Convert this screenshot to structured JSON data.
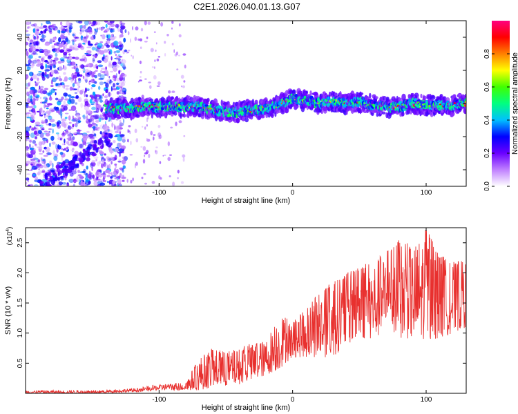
{
  "title": "C2E1.2026.040.01.13.G07",
  "chart_data": [
    {
      "type": "heatmap",
      "xlabel": "Height of straight line (km)",
      "ylabel": "Frequency (Hz)",
      "xlim": [
        -200,
        130
      ],
      "ylim": [
        -50,
        50
      ],
      "xticks": [
        -100,
        0,
        100
      ],
      "xtick_labels": [
        "-100",
        "0",
        "100"
      ],
      "yticks": [
        -40,
        -20,
        0,
        20,
        40
      ],
      "ytick_labels": [
        "-40",
        "-20",
        "0",
        "20",
        "40"
      ],
      "colorbar": {
        "label": "Normalized spectral amplitude",
        "range": [
          0,
          1
        ],
        "ticks": [
          0,
          0.2,
          0.4,
          0.6,
          0.8
        ],
        "tick_labels": [
          "0.0",
          "0.2",
          "0.4",
          "0.6",
          "0.8"
        ],
        "colormap": [
          "#ffffff",
          "#c080ff",
          "#6a00ff",
          "#0000ff",
          "#00c0ff",
          "#00ff80",
          "#40ff00",
          "#ffff00",
          "#ff8000",
          "#ff0000",
          "#ff0080"
        ]
      },
      "band_center": {
        "x": [
          -140,
          -130,
          -120,
          -110,
          -100,
          -90,
          -80,
          -70,
          -60,
          -50,
          -40,
          -30,
          -20,
          -10,
          -5,
          0,
          5,
          10,
          20,
          30,
          40,
          50,
          60,
          70,
          80,
          90,
          100,
          110,
          120,
          130
        ],
        "y": [
          -3,
          -3,
          -3,
          -2,
          -2,
          -2,
          -2,
          -2,
          -4,
          -5,
          -5,
          -4,
          -3,
          -1,
          1,
          3,
          2,
          2,
          0,
          1,
          0,
          1,
          -1,
          -2,
          -2,
          0,
          -1,
          -1,
          -1,
          0
        ]
      }
    },
    {
      "type": "line",
      "xlabel": "Height of straight line (km)",
      "ylabel": "SNR (10 * v/v)",
      "scale_label": "(x10",
      "scale_exp": "4",
      "xlim": [
        -200,
        130
      ],
      "ylim": [
        0,
        2.75
      ],
      "xticks": [
        -100,
        0,
        100
      ],
      "xtick_labels": [
        "-100",
        "0",
        "100"
      ],
      "yticks": [
        0.5,
        1.0,
        1.5,
        2.0,
        2.5
      ],
      "ytick_labels": [
        "0.5",
        "1.0",
        "1.5",
        "2.0",
        "2.5"
      ],
      "line_color": "#e8302e",
      "envelope": {
        "x": [
          -200,
          -150,
          -120,
          -100,
          -80,
          -70,
          -60,
          -50,
          -40,
          -30,
          -20,
          -10,
          0,
          10,
          20,
          30,
          40,
          50,
          60,
          70,
          80,
          90,
          100,
          110,
          120,
          130
        ],
        "lower": [
          0.0,
          0.0,
          0.02,
          0.05,
          0.05,
          0.05,
          0.1,
          0.12,
          0.15,
          0.2,
          0.3,
          0.4,
          0.6,
          0.6,
          0.6,
          0.6,
          0.8,
          0.9,
          0.9,
          1.0,
          0.9,
          0.9,
          0.9,
          0.9,
          1.0,
          1.1
        ],
        "upper": [
          0.05,
          0.05,
          0.08,
          0.15,
          0.2,
          0.6,
          0.75,
          0.7,
          0.75,
          0.85,
          0.9,
          1.3,
          1.2,
          1.4,
          1.7,
          1.85,
          2.0,
          2.1,
          2.2,
          2.35,
          2.55,
          2.45,
          2.75,
          2.3,
          2.2,
          2.2
        ]
      }
    }
  ]
}
